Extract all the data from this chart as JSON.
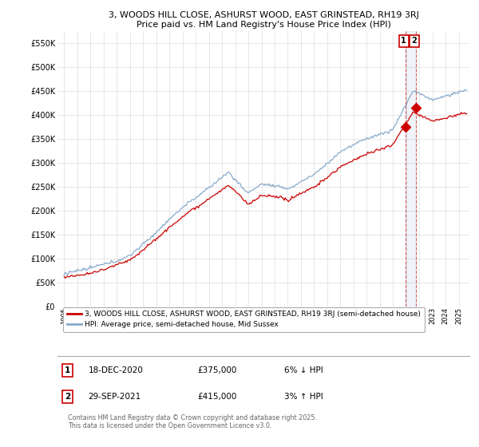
{
  "title_line1": "3, WOODS HILL CLOSE, ASHURST WOOD, EAST GRINSTEAD, RH19 3RJ",
  "title_line2": "Price paid vs. HM Land Registry's House Price Index (HPI)",
  "legend_label1": "3, WOODS HILL CLOSE, ASHURST WOOD, EAST GRINSTEAD, RH19 3RJ (semi-detached house)",
  "legend_label2": "HPI: Average price, semi-detached house, Mid Sussex",
  "footer": "Contains HM Land Registry data © Crown copyright and database right 2025.\nThis data is licensed under the Open Government Licence v3.0.",
  "transactions": [
    {
      "label": "1",
      "date": "18-DEC-2020",
      "price": 375000,
      "pct": "6%",
      "dir": "↓",
      "color": "#cc0000"
    },
    {
      "label": "2",
      "date": "29-SEP-2021",
      "price": 415000,
      "pct": "3%",
      "dir": "↑",
      "color": "#cc0000"
    }
  ],
  "transaction_dates_num": [
    2020.96,
    2021.75
  ],
  "transaction_prices": [
    375000,
    415000
  ],
  "line1_color": "#cc0000",
  "line2_color": "#88aacc",
  "background_color": "#ffffff",
  "grid_color": "#dddddd",
  "ylim": [
    0,
    575000
  ],
  "yticks": [
    0,
    50000,
    100000,
    150000,
    200000,
    250000,
    300000,
    350000,
    400000,
    450000,
    500000,
    550000
  ],
  "xlim": [
    1994.5,
    2025.8
  ],
  "xticks": [
    1995,
    1996,
    1997,
    1998,
    1999,
    2000,
    2001,
    2002,
    2003,
    2004,
    2005,
    2006,
    2007,
    2008,
    2009,
    2010,
    2011,
    2012,
    2013,
    2014,
    2015,
    2016,
    2017,
    2018,
    2019,
    2020,
    2021,
    2022,
    2023,
    2024,
    2025
  ]
}
